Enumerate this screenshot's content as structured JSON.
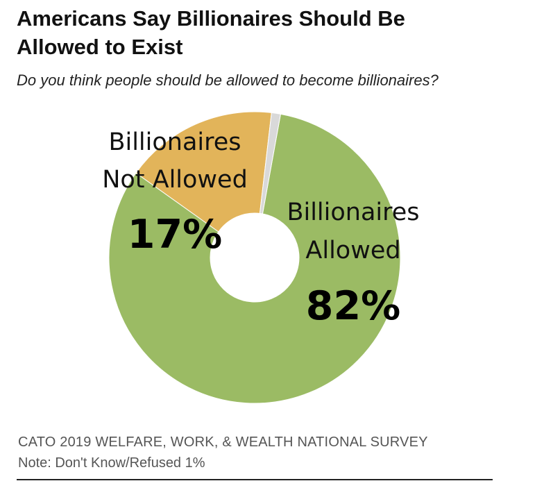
{
  "header": {
    "title_line1": "Americans Say Billionaires Should Be",
    "title_line2": "Allowed to Exist",
    "subtitle": "Do you think people should be allowed to become billionaires?"
  },
  "chart_data": {
    "type": "pie",
    "style": "donut",
    "categories": [
      "Billionaires Allowed",
      "Billionaires Not Allowed",
      "Don't Know/Refused"
    ],
    "values": [
      82,
      17,
      1
    ],
    "colors": [
      "#9bbb64",
      "#e2b45a",
      "#d9d9d9"
    ],
    "slices": [
      {
        "label_line1": "Billionaires",
        "label_line2": "Allowed",
        "value_label": "82%"
      },
      {
        "label_line1": "Billionaires",
        "label_line2": "Not Allowed",
        "value_label": "17%"
      },
      {
        "label_line1": "",
        "label_line2": "",
        "value_label": ""
      }
    ]
  },
  "footer": {
    "source": "CATO 2019 WELFARE, WORK, & WEALTH NATIONAL SURVEY",
    "note": "Note: Don't Know/Refused 1%"
  }
}
